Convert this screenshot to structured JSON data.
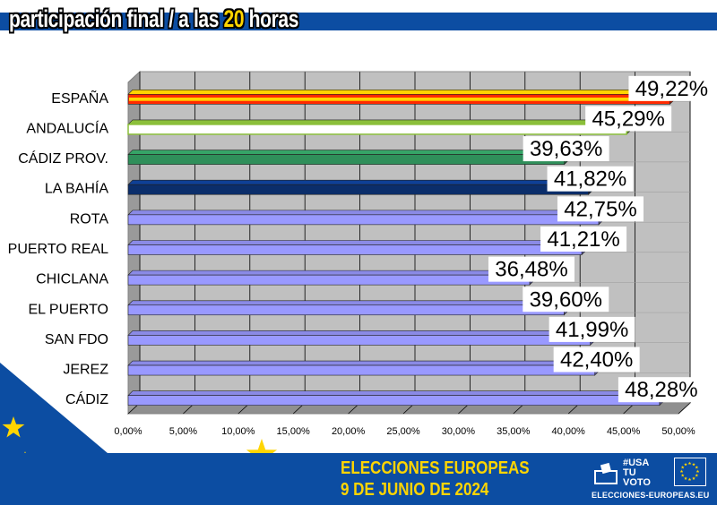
{
  "header": {
    "title_pre": "participación final / a las ",
    "title_highlight": "20",
    "title_post": " horas"
  },
  "footer": {
    "title": "ELECCIONES EUROPEAS",
    "date": "9 DE JUNIO DE 2024",
    "campaign": [
      "#USA",
      "TU",
      "VOTO"
    ],
    "url": "ELECCIONES-EUROPEAS.EU"
  },
  "colors": {
    "brand_blue": "#0c4da2",
    "accent_yellow": "#ffd500",
    "default_bar": "#9999ff",
    "espana_bar": "#ff2a00",
    "espana_bar_stripe": "#ffd400",
    "andalucia_bar": "#ffffff",
    "andalucia_bar_edge": "#8bbf3a",
    "cadiz_prov_bar": "#2f8f5a",
    "la_bahia_bar": "#0b2e6b"
  },
  "chart_data": {
    "type": "bar",
    "orientation": "horizontal",
    "title": "",
    "xlabel": "",
    "ylabel": "",
    "categories": [
      "ESPAÑA",
      "ANDALUCÍA",
      "CÁDIZ PROV.",
      "LA BAHÍA",
      "ROTA",
      "PUERTO REAL",
      "CHICLANA",
      "EL PUERTO",
      "SAN FDO",
      "JEREZ",
      "CÁDIZ"
    ],
    "values": [
      49.22,
      45.29,
      39.63,
      41.82,
      42.75,
      41.21,
      36.48,
      39.6,
      41.99,
      42.4,
      48.28
    ],
    "value_labels": [
      "49,22%",
      "45,29%",
      "39,63%",
      "41,82%",
      "42,75%",
      "41,21%",
      "36,48%",
      "39,60%",
      "41,99%",
      "42,40%",
      "48,28%"
    ],
    "bar_styles": [
      "espana",
      "andalucia",
      "cadiz_prov",
      "la_bahia",
      "default",
      "default",
      "default",
      "default",
      "default",
      "default",
      "default"
    ],
    "xlim": [
      0,
      50
    ],
    "x_ticks": [
      0,
      5,
      10,
      15,
      20,
      25,
      30,
      35,
      40,
      45,
      50
    ],
    "x_tick_labels": [
      "0,00%",
      "5,00%",
      "10,00%",
      "15,00%",
      "20,00%",
      "25,00%",
      "30,00%",
      "35,00%",
      "40,00%",
      "45,00%",
      "50,00%"
    ],
    "grid": true,
    "legend": "none"
  }
}
